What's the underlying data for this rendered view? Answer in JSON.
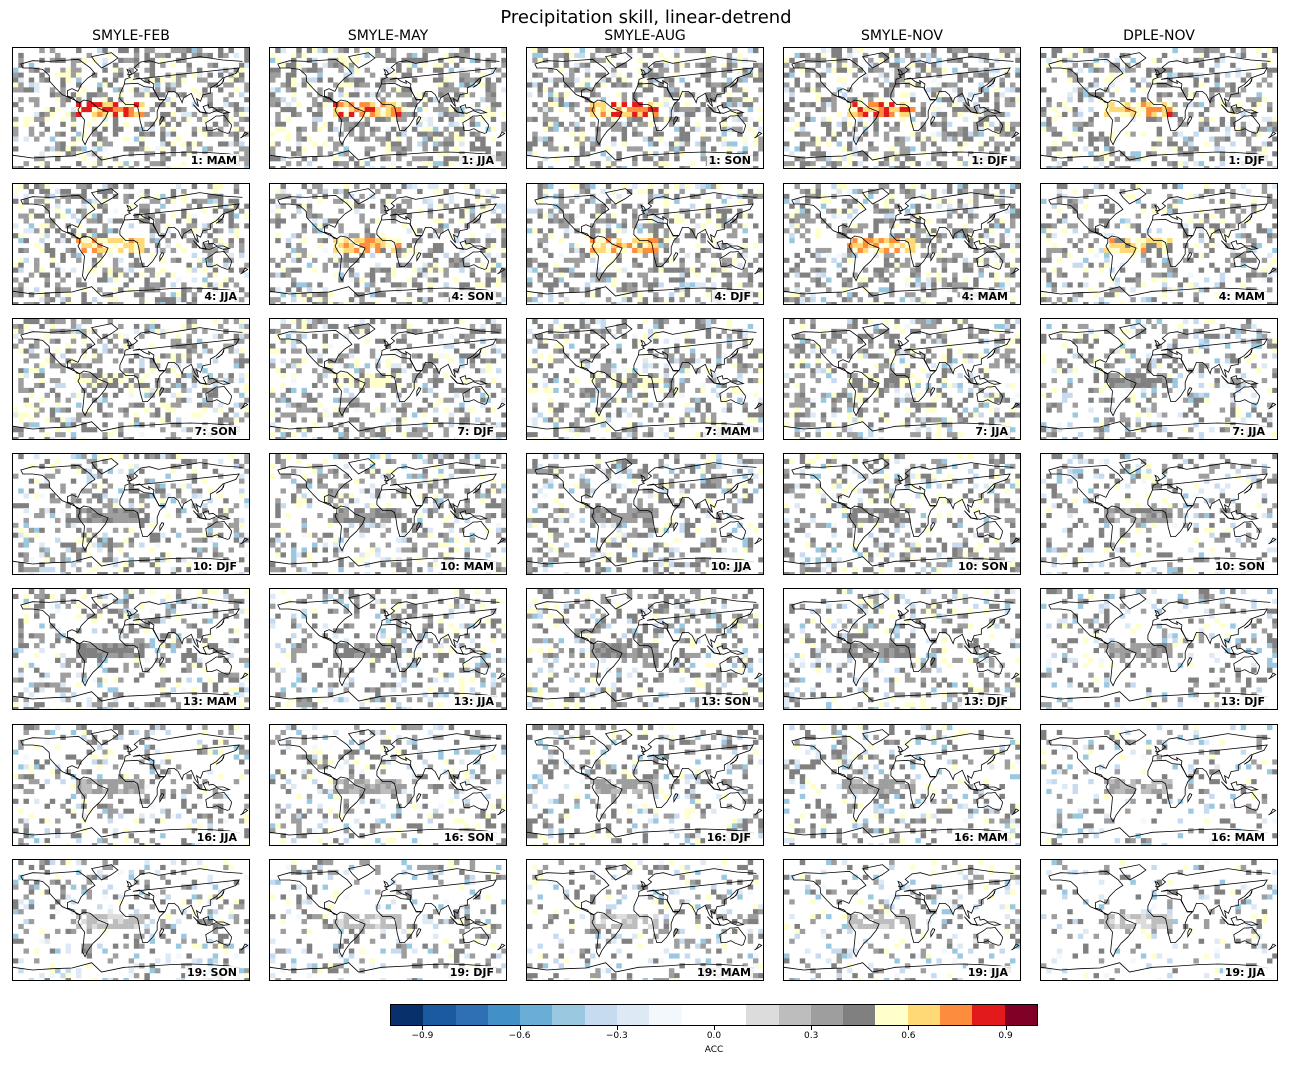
{
  "title": "Precipitation skill, linear-detrend",
  "columns": [
    "SMYLE-FEB",
    "SMYLE-MAY",
    "SMYLE-AUG",
    "SMYLE-NOV",
    "DPLE-NOV"
  ],
  "panel_labels": [
    [
      "1: MAM",
      "1: JJA",
      "1: SON",
      "1: DJF",
      "1: DJF"
    ],
    [
      "4: JJA",
      "4: SON",
      "4: DJF",
      "4: MAM",
      "4: MAM"
    ],
    [
      "7: SON",
      "7: DJF",
      "7: MAM",
      "7: JJA",
      "7: JJA"
    ],
    [
      "10: DJF",
      "10: MAM",
      "10: JJA",
      "10: SON",
      "10: SON"
    ],
    [
      "13: MAM",
      "13: JJA",
      "13: SON",
      "13: DJF",
      "13: DJF"
    ],
    [
      "16: JJA",
      "16: SON",
      "16: DJF",
      "16: MAM",
      "16: MAM"
    ],
    [
      "19: SON",
      "19: DJF",
      "19: MAM",
      "19: JJA",
      "19: JJA"
    ]
  ],
  "colorbar": {
    "label": "ACC",
    "ticks": [
      "−0.9",
      "−0.6",
      "−0.3",
      "0.0",
      "0.3",
      "0.6",
      "0.9"
    ],
    "tick_values": [
      -0.9,
      -0.6,
      -0.3,
      0.0,
      0.3,
      0.6,
      0.9
    ],
    "range": [
      -1.0,
      1.0
    ],
    "colors": [
      "#08306b",
      "#1b5aa0",
      "#2f70b5",
      "#4291c6",
      "#6aaed6",
      "#9ac8e0",
      "#c6dbef",
      "#dde9f5",
      "#f3f8fd",
      "#ffffff",
      "#ffffff",
      "#dcdcdc",
      "#bdbdbd",
      "#9e9e9e",
      "#808080",
      "#ffffcc",
      "#fed976",
      "#fd8d3c",
      "#e31a1c",
      "#800026"
    ]
  },
  "chart_data": {
    "type": "heatmap",
    "title": "Precipitation skill, linear-detrend",
    "columns": [
      "SMYLE-FEB",
      "SMYLE-MAY",
      "SMYLE-AUG",
      "SMYLE-NOV",
      "DPLE-NOV"
    ],
    "lead_years": [
      1,
      4,
      7,
      10,
      13,
      16,
      19
    ],
    "colorbar_label": "ACC",
    "colorbar_range": [
      -1.0,
      1.0
    ],
    "colorbar_ticks": [
      -0.9,
      -0.6,
      -0.3,
      0.0,
      0.3,
      0.6,
      0.9
    ],
    "tropical_pacific_peak_acc_by_row": [
      0.9,
      0.8,
      0.6,
      0.5,
      0.5,
      0.4,
      0.3
    ]
  }
}
